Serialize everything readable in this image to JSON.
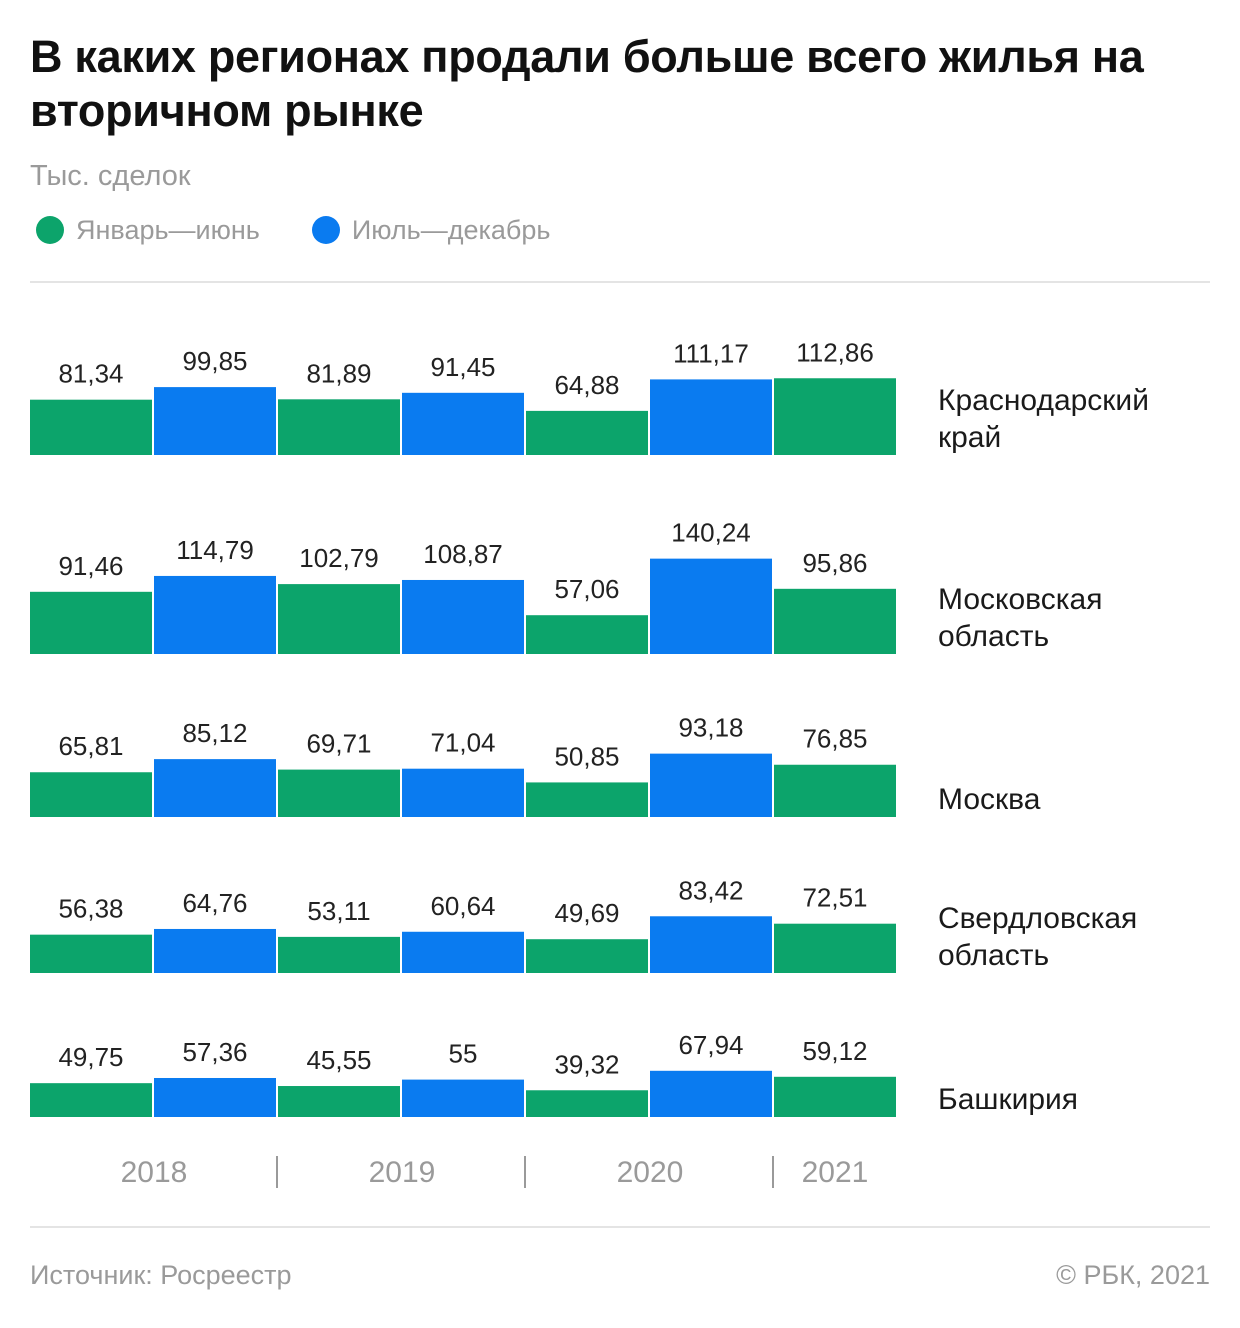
{
  "title": "В каких регионах продали больше всего жилья на вторичном рынке",
  "subtitle": "Тыс. сделок",
  "legend": [
    {
      "label": "Январь—июнь",
      "color": "#0ca46b"
    },
    {
      "label": "Июль—декабрь",
      "color": "#0a7bf0"
    }
  ],
  "footer": {
    "source": "Источник: Росреестр",
    "copyright": "© РБК, 2021"
  },
  "chart_data": {
    "type": "bar",
    "periods": [
      {
        "label": "2018 Январь—июнь",
        "series": "Январь—июнь"
      },
      {
        "label": "2018 Июль—декабрь",
        "series": "Июль—декабрь"
      },
      {
        "label": "2019 Январь—июнь",
        "series": "Январь—июнь"
      },
      {
        "label": "2019 Июль—декабрь",
        "series": "Июль—декабрь"
      },
      {
        "label": "2020 Январь—июнь",
        "series": "Январь—июнь"
      },
      {
        "label": "2020 Июль—декабрь",
        "series": "Июль—декабрь"
      },
      {
        "label": "2021 Январь—июнь",
        "series": "Январь—июнь"
      }
    ],
    "year_labels": [
      "2018",
      "2019",
      "2020",
      "2021"
    ],
    "series_colors": {
      "Январь—июнь": "#0ca46b",
      "Июль—декабрь": "#0a7bf0"
    },
    "regions": [
      {
        "name": [
          "Краснодарский",
          "край"
        ],
        "values": [
          81.34,
          99.85,
          81.89,
          91.45,
          64.88,
          111.17,
          112.86
        ],
        "labels": [
          "81,34",
          "99,85",
          "81,89",
          "91,45",
          "64,88",
          "111,17",
          "112,86"
        ]
      },
      {
        "name": [
          "Московская",
          "область"
        ],
        "values": [
          91.46,
          114.79,
          102.79,
          108.87,
          57.06,
          140.24,
          95.86
        ],
        "labels": [
          "91,46",
          "114,79",
          "102,79",
          "108,87",
          "57,06",
          "140,24",
          "95,86"
        ]
      },
      {
        "name": [
          "Москва"
        ],
        "values": [
          65.81,
          85.12,
          69.71,
          71.04,
          50.85,
          93.18,
          76.85
        ],
        "labels": [
          "65,81",
          "85,12",
          "69,71",
          "71,04",
          "50,85",
          "93,18",
          "76,85"
        ]
      },
      {
        "name": [
          "Свердловская",
          "область"
        ],
        "values": [
          56.38,
          64.76,
          53.11,
          60.64,
          49.69,
          83.42,
          72.51
        ],
        "labels": [
          "56,38",
          "64,76",
          "53,11",
          "60,64",
          "49,69",
          "83,42",
          "72,51"
        ]
      },
      {
        "name": [
          "Башкирия"
        ],
        "values": [
          49.75,
          57.36,
          45.55,
          55,
          39.32,
          67.94,
          59.12
        ],
        "labels": [
          "49,75",
          "57,36",
          "45,55",
          "55",
          "39,32",
          "67,94",
          "59,12"
        ]
      }
    ]
  }
}
